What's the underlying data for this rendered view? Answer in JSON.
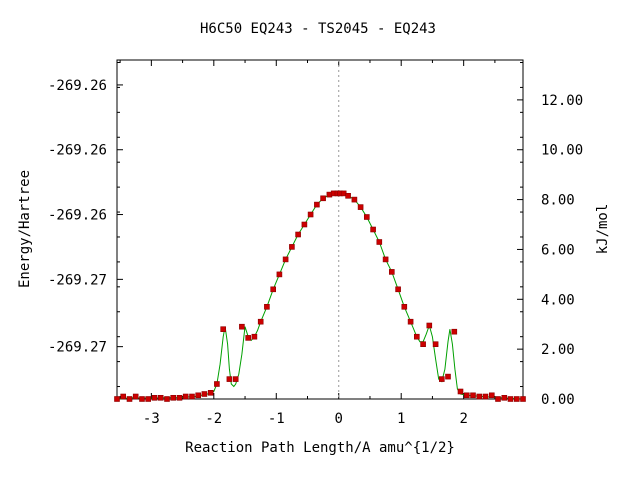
{
  "chart_data": {
    "type": "line",
    "title": "H6C50   EQ243 - TS2045 - EQ243",
    "xlabel": "Reaction Path Length/A amu^{1/2}",
    "ylabel_left": "Energy/Hartree",
    "ylabel_right": "kJ/mol",
    "xlim": [
      -3.55,
      2.95
    ],
    "ylim_right_kjmol": [
      0,
      13.6
    ],
    "x_ticks": [
      -3,
      -2,
      -1,
      0,
      1,
      2
    ],
    "x_tick_labels": [
      "-3",
      "-2",
      "-1",
      "0",
      "1",
      "2"
    ],
    "left_tick_labels": [
      "-269.26",
      "-269.26",
      "-269.26",
      "-269.27",
      "-269.27"
    ],
    "left_tick_positions_kjmol": [
      12.6,
      10.0,
      7.4,
      4.8,
      2.1
    ],
    "right_ticks": [
      0,
      2,
      4,
      6,
      8,
      10,
      12
    ],
    "right_tick_labels": [
      "0.00",
      "2.00",
      "4.00",
      "6.00",
      "8.00",
      "10.00",
      "12.00"
    ],
    "grid": false,
    "vertical_reference_x": 0,
    "colors": {
      "line": "#00a000",
      "marker": "#cc0000",
      "marker_edge": "#8b0000",
      "reference_line": "#999999"
    },
    "series": [
      {
        "points_x": [
          -3.55,
          -3.45,
          -3.35,
          -3.25,
          -3.15,
          -3.05,
          -2.95,
          -2.85,
          -2.75,
          -2.65,
          -2.55,
          -2.45,
          -2.35,
          -2.25,
          -2.15,
          -2.05,
          -1.95,
          -1.85,
          -1.75,
          -1.65,
          -1.55,
          -1.45,
          -1.35,
          -1.25,
          -1.15,
          -1.05,
          -0.95,
          -0.85,
          -0.75,
          -0.65,
          -0.55,
          -0.45,
          -0.35,
          -0.25,
          -0.15,
          -0.08,
          -0.02,
          0.02,
          0.08,
          0.15,
          0.25,
          0.35,
          0.45,
          0.55,
          0.65,
          0.75,
          0.85,
          0.95,
          1.05,
          1.15,
          1.25,
          1.35,
          1.45,
          1.55,
          1.65,
          1.75,
          1.85,
          1.95,
          2.05,
          2.15,
          2.25,
          2.35,
          2.45,
          2.55,
          2.65,
          2.75,
          2.85,
          2.95
        ],
        "points_y": [
          0.0,
          0.1,
          0.0,
          0.1,
          0.0,
          0.0,
          0.05,
          0.05,
          0.0,
          0.05,
          0.05,
          0.1,
          0.1,
          0.15,
          0.2,
          0.25,
          0.6,
          2.8,
          0.8,
          0.8,
          2.9,
          2.45,
          2.5,
          3.1,
          3.7,
          4.4,
          5.0,
          5.6,
          6.1,
          6.6,
          7.0,
          7.4,
          7.8,
          8.05,
          8.2,
          8.25,
          8.25,
          8.25,
          8.25,
          8.15,
          8.0,
          7.7,
          7.3,
          6.8,
          6.3,
          5.6,
          5.1,
          4.4,
          3.7,
          3.1,
          2.5,
          2.2,
          2.95,
          2.2,
          0.8,
          0.9,
          2.7,
          0.3,
          0.15,
          0.15,
          0.1,
          0.1,
          0.15,
          0.0,
          0.05,
          0.0,
          0.0,
          0.0
        ],
        "curve_x": [
          -3.55,
          -3.3,
          -3.05,
          -2.8,
          -2.55,
          -2.3,
          -2.1,
          -2.0,
          -1.95,
          -1.9,
          -1.85,
          -1.82,
          -1.78,
          -1.75,
          -1.72,
          -1.68,
          -1.65,
          -1.6,
          -1.55,
          -1.5,
          -1.45,
          -1.4,
          -1.35,
          -1.3,
          -1.25,
          -1.15,
          -1.05,
          -0.95,
          -0.85,
          -0.75,
          -0.65,
          -0.55,
          -0.45,
          -0.35,
          -0.25,
          -0.15,
          -0.05,
          0.0,
          0.05,
          0.15,
          0.25,
          0.35,
          0.45,
          0.55,
          0.65,
          0.75,
          0.85,
          0.95,
          1.05,
          1.15,
          1.25,
          1.3,
          1.35,
          1.4,
          1.45,
          1.5,
          1.55,
          1.6,
          1.65,
          1.7,
          1.75,
          1.78,
          1.82,
          1.86,
          1.9,
          1.95,
          2.05,
          2.3,
          2.6,
          2.95
        ],
        "curve_y": [
          0.0,
          0.05,
          0.03,
          0.05,
          0.06,
          0.1,
          0.2,
          0.3,
          0.6,
          1.4,
          2.5,
          2.9,
          2.2,
          1.2,
          0.6,
          0.5,
          0.6,
          1.0,
          1.8,
          2.9,
          2.5,
          2.35,
          2.5,
          2.75,
          3.1,
          3.7,
          4.4,
          5.0,
          5.6,
          6.1,
          6.6,
          7.0,
          7.4,
          7.8,
          8.05,
          8.2,
          8.25,
          8.25,
          8.25,
          8.15,
          8.0,
          7.7,
          7.3,
          6.8,
          6.3,
          5.6,
          5.1,
          4.4,
          3.7,
          3.1,
          2.5,
          2.3,
          2.3,
          2.6,
          2.95,
          2.5,
          1.6,
          0.8,
          0.7,
          1.2,
          2.3,
          2.8,
          2.2,
          1.2,
          0.4,
          0.2,
          0.15,
          0.1,
          0.05,
          0.0
        ]
      }
    ]
  }
}
